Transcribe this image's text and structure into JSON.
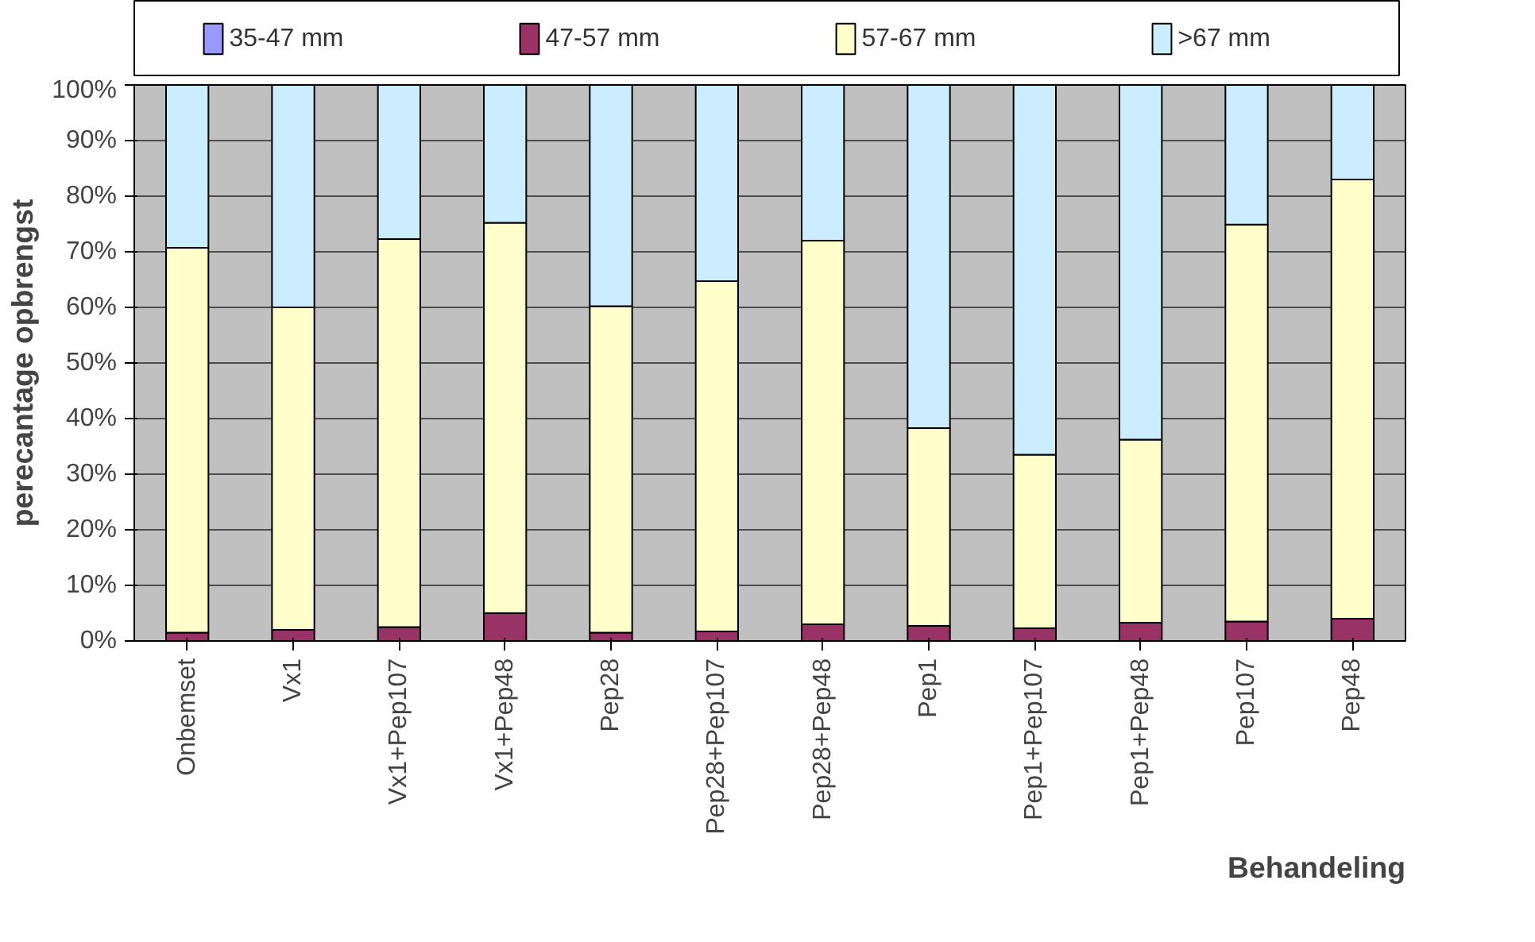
{
  "chart_data": {
    "type": "bar",
    "stacked": true,
    "xlabel": "Behandeling",
    "ylabel": "perecantage opbrengst",
    "categories": [
      "Onbemset",
      "Vx1",
      "Vx1+Pep107",
      "Vx1+Pep48",
      "Pep28",
      "Pep28+Pep107",
      "Pep28+Pep48",
      "Pep1",
      "Pep1+Pep107",
      "Pep1+Pep48",
      "Pep107",
      "Pep48"
    ],
    "series": [
      {
        "name": "35-47 mm",
        "color": "#9999ff",
        "values": [
          0,
          0,
          0,
          0,
          0,
          0,
          0,
          0,
          0,
          0,
          0,
          0
        ]
      },
      {
        "name": "47-57 mm",
        "color": "#993366",
        "values": [
          1.5,
          2,
          2.5,
          5,
          1.5,
          1.7,
          3,
          2.7,
          2.3,
          3.3,
          3.5,
          4
        ]
      },
      {
        "name": "57-67 mm",
        "color": "#ffffcc",
        "values": [
          69.2,
          58,
          69.8,
          70.2,
          58.7,
          63,
          69,
          35.6,
          31.2,
          32.9,
          71.4,
          79
        ]
      },
      {
        "name": ">67 mm",
        "color": "#ccecff",
        "values": [
          29.3,
          40,
          27.7,
          24.8,
          39.8,
          35.3,
          28,
          61.7,
          66.5,
          63.8,
          25.1,
          17
        ]
      }
    ],
    "ylim": [
      0,
      100
    ],
    "yticks": [
      {
        "value": 0,
        "label": "0%"
      },
      {
        "value": 10,
        "label": "10%"
      },
      {
        "value": 20,
        "label": "20%"
      },
      {
        "value": 30,
        "label": "30%"
      },
      {
        "value": 40,
        "label": "40%"
      },
      {
        "value": 50,
        "label": "50%"
      },
      {
        "value": 60,
        "label": "60%"
      },
      {
        "value": 70,
        "label": "70%"
      },
      {
        "value": 80,
        "label": "80%"
      },
      {
        "value": 90,
        "label": "90%"
      },
      {
        "value": 100,
        "label": "100%"
      }
    ],
    "grid": "y",
    "legend": "top"
  }
}
